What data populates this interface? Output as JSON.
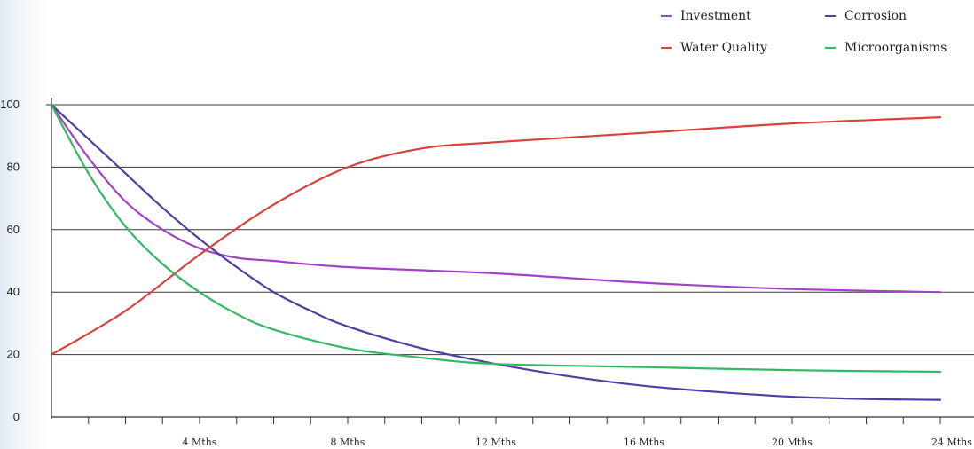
{
  "chart_data": {
    "type": "line",
    "title": "",
    "xlabel": "",
    "ylabel": "",
    "xlim": [
      0,
      24
    ],
    "ylim": [
      0,
      100
    ],
    "y_ticks": [
      0,
      20,
      40,
      60,
      80,
      100
    ],
    "y_tick_labels": [
      "0",
      "20",
      "40",
      "60",
      "80",
      "100"
    ],
    "x_tick_labels": [
      {
        "x": 4,
        "label": "4 Mths"
      },
      {
        "x": 8,
        "label": "8 Mths"
      },
      {
        "x": 12,
        "label": "12 Mths"
      },
      {
        "x": 16,
        "label": "16 Mths"
      },
      {
        "x": 20,
        "label": "20 Mths"
      },
      {
        "x": 24,
        "label": "24 Mths"
      }
    ],
    "x_minor_step": 1,
    "grid": "horizontal",
    "legend_position": "top-right",
    "series": [
      {
        "name": "Investment",
        "color": "#a043c4",
        "x": [
          0,
          1,
          2,
          3,
          4,
          5,
          6,
          8,
          12,
          16,
          20,
          24
        ],
        "y": [
          100,
          83,
          69,
          60,
          54,
          51,
          50,
          48,
          46,
          43,
          41,
          40
        ]
      },
      {
        "name": "Corrosion",
        "color": "#4c3fa6",
        "x": [
          0,
          1,
          2,
          3,
          4,
          5,
          6,
          7,
          8,
          10,
          12,
          14,
          16,
          18,
          20,
          22,
          24
        ],
        "y": [
          100,
          89,
          78,
          67,
          57,
          48,
          40,
          34,
          29,
          22,
          17,
          13,
          10,
          8,
          6.5,
          5.8,
          5.5
        ]
      },
      {
        "name": "Water Quality",
        "color": "#d9413a",
        "x": [
          0,
          2,
          4,
          6,
          8,
          10,
          12,
          16,
          20,
          24
        ],
        "y": [
          20,
          34,
          52,
          68,
          80,
          86,
          88,
          91,
          94,
          96
        ]
      },
      {
        "name": "Microorganisms",
        "color": "#33b863",
        "x": [
          0,
          1,
          2,
          3,
          4,
          5,
          6,
          8,
          10,
          12,
          16,
          20,
          24
        ],
        "y": [
          100,
          78,
          61,
          49,
          40,
          33,
          28,
          22,
          19,
          17,
          16,
          15,
          14.5
        ]
      }
    ],
    "legend": [
      {
        "name": "Investment",
        "color": "#a043c4"
      },
      {
        "name": "Corrosion",
        "color": "#4c3fa6"
      },
      {
        "name": "Water Quality",
        "color": "#d9413a"
      },
      {
        "name": "Microorganisms",
        "color": "#33b863"
      }
    ]
  }
}
